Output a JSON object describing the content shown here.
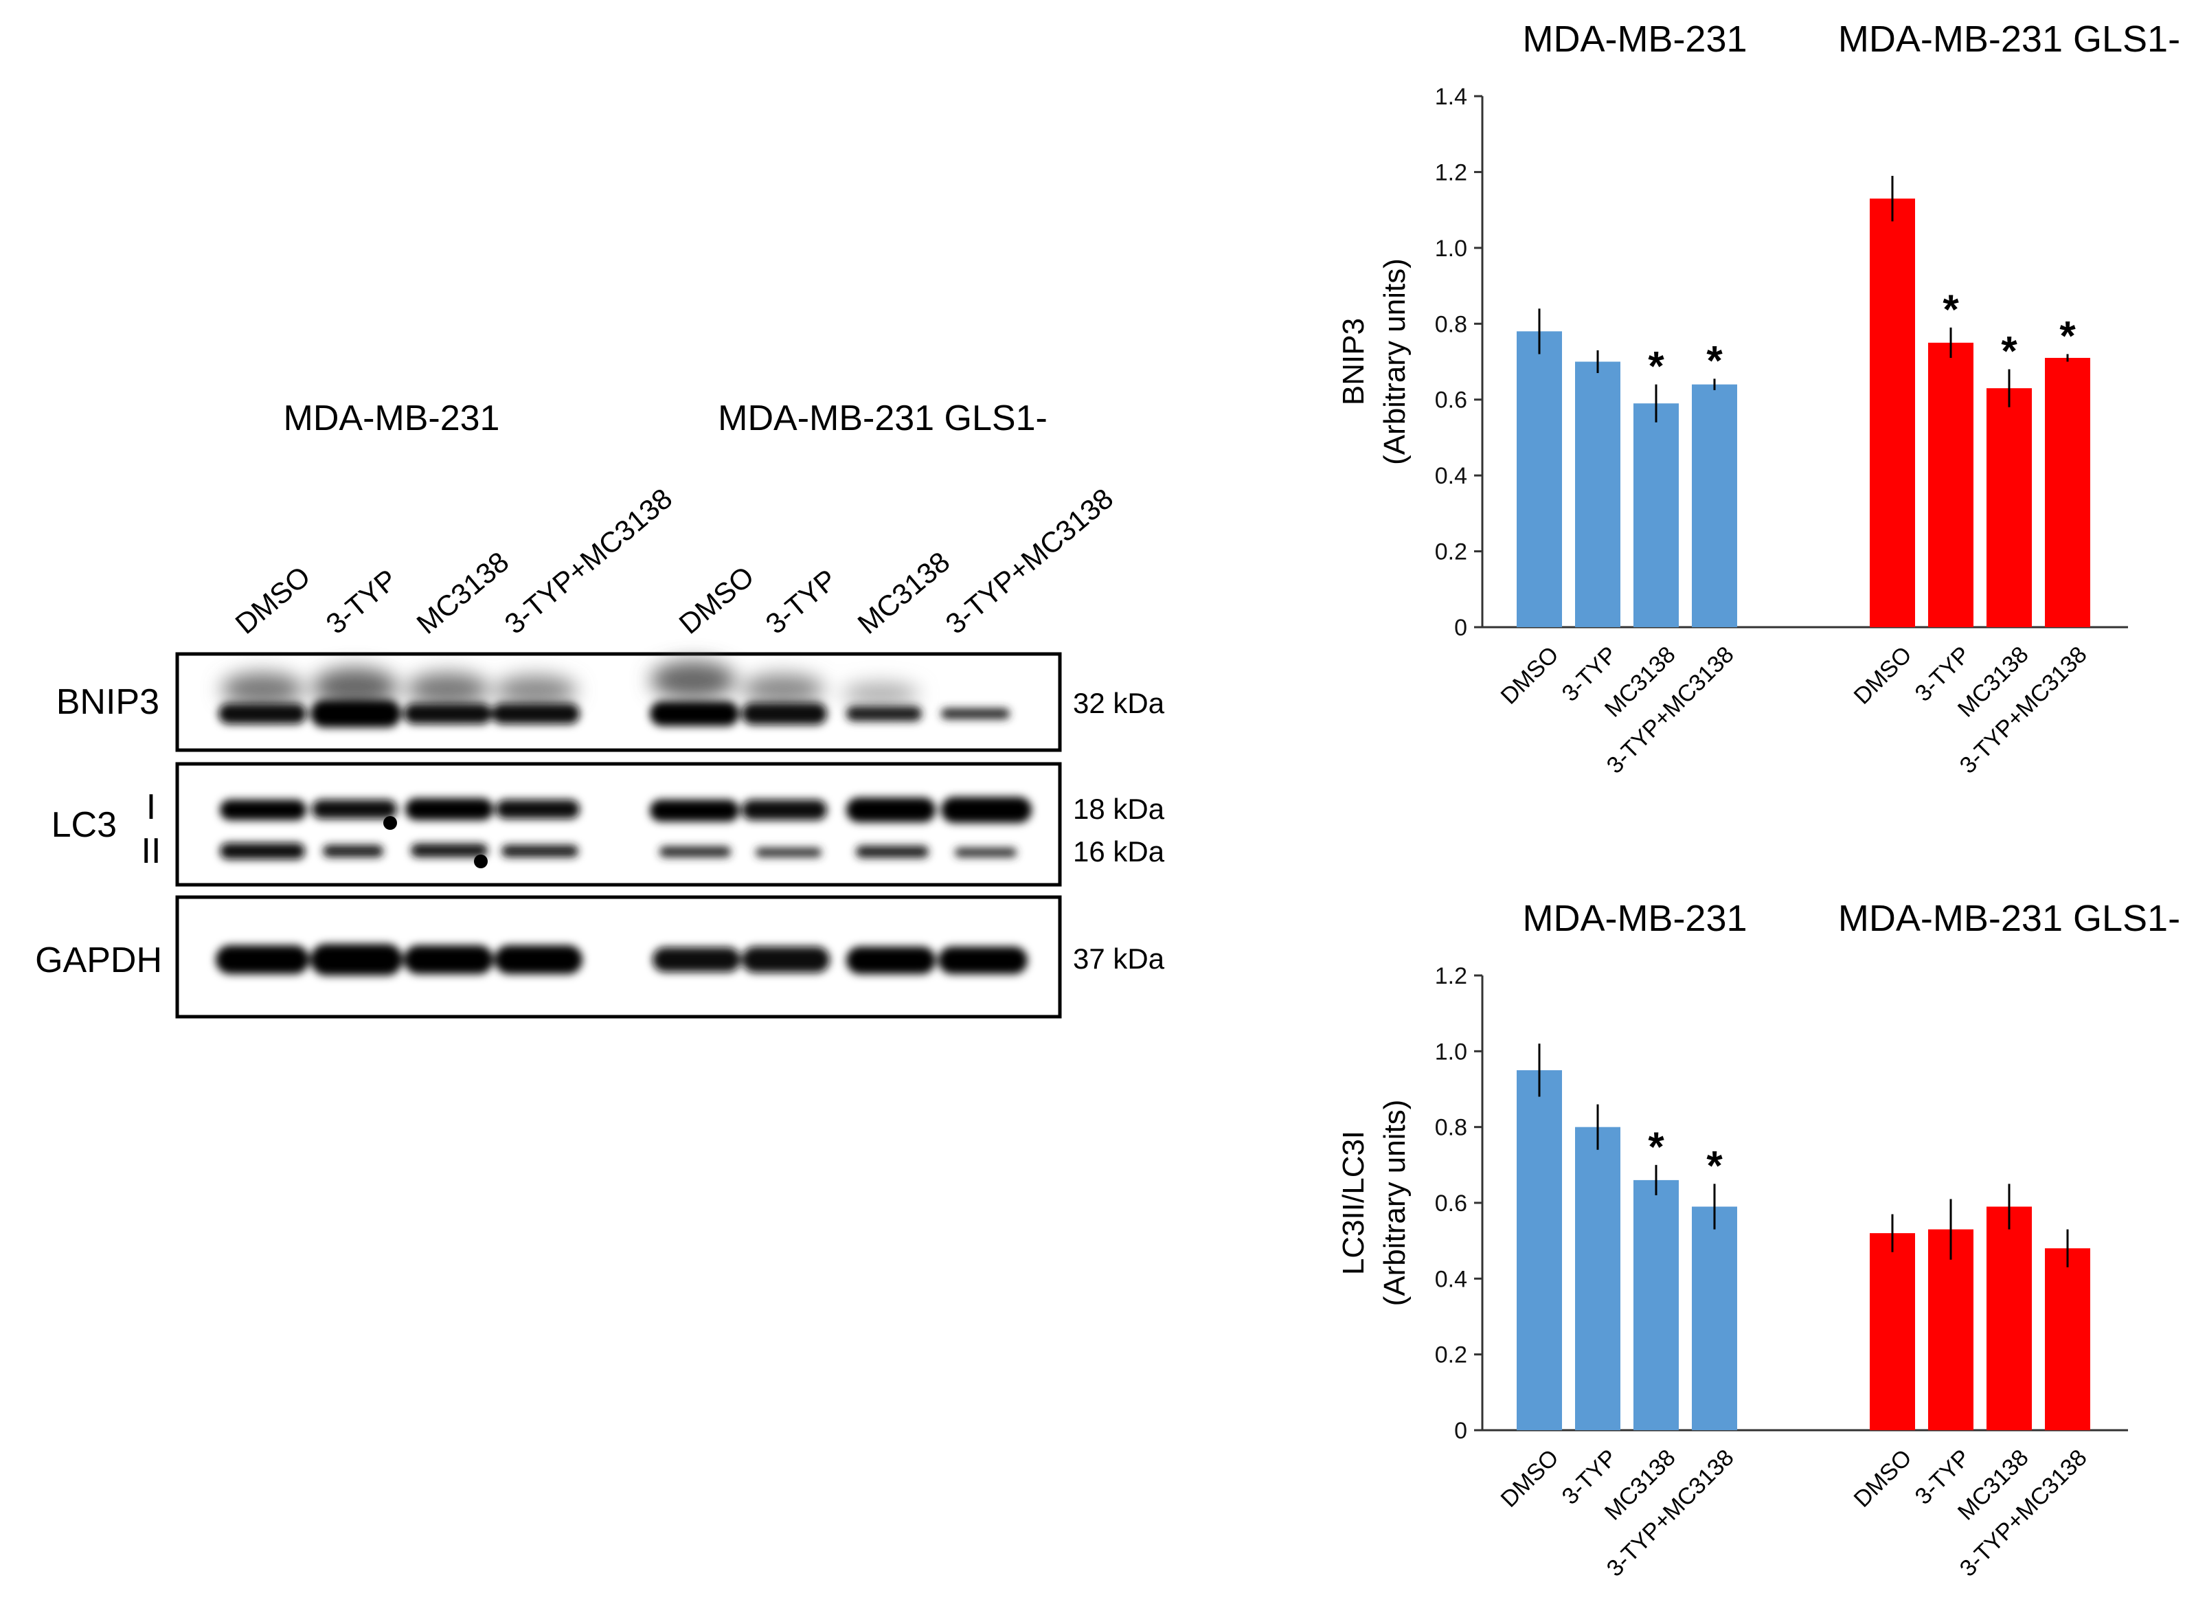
{
  "blot": {
    "groups": [
      "MDA-MB-231",
      "MDA-MB-231 GLS1-"
    ],
    "lanes": [
      "DMSO",
      "3-TYP",
      "MC3138",
      "3-TYP+MC3138",
      "DMSO",
      "3-TYP",
      "MC3138",
      "3-TYP+MC3138"
    ],
    "panels": [
      {
        "label": "BNIP3",
        "sublabels": [],
        "markers": [
          "32 kDa"
        ]
      },
      {
        "label": "LC3",
        "sublabels": [
          "I",
          "II"
        ],
        "markers": [
          "18 kDa",
          "16 kDa"
        ]
      },
      {
        "label": "GAPDH",
        "sublabels": [],
        "markers": [
          "37 kDa"
        ]
      }
    ]
  },
  "chart_data": [
    {
      "type": "bar",
      "groups": [
        "MDA-MB-231",
        "MDA-MB-231 GLS1-"
      ],
      "categories": [
        "DMSO",
        "3-TYP",
        "MC3138",
        "3-TYP+MC3138"
      ],
      "ylabel": [
        "BNIP3",
        "(Arbitrary units)"
      ],
      "ylim": [
        0,
        1.4
      ],
      "yticks": [
        "0",
        "0.2",
        "0.4",
        "0.6",
        "0.8",
        "1.0",
        "1.2",
        "1.4"
      ],
      "series": [
        {
          "values": [
            0.78,
            0.7,
            0.59,
            0.64
          ],
          "errors": [
            0.06,
            0.03,
            0.05,
            0.015
          ],
          "sig": [
            "",
            "",
            "*",
            "*"
          ],
          "color": "#5b9bd5"
        },
        {
          "values": [
            1.13,
            0.75,
            0.63,
            0.71
          ],
          "errors": [
            0.06,
            0.04,
            0.05,
            0.01
          ],
          "sig": [
            "",
            "*",
            "*",
            "*"
          ],
          "color": "#ff0000"
        }
      ]
    },
    {
      "type": "bar",
      "groups": [
        "MDA-MB-231",
        "MDA-MB-231 GLS1-"
      ],
      "categories": [
        "DMSO",
        "3-TYP",
        "MC3138",
        "3-TYP+MC3138"
      ],
      "ylabel": [
        "LC3II/LC3I",
        "(Arbitrary units)"
      ],
      "ylim": [
        0,
        1.2
      ],
      "yticks": [
        "0",
        "0.2",
        "0.4",
        "0.6",
        "0.8",
        "1.0",
        "1.2"
      ],
      "series": [
        {
          "values": [
            0.95,
            0.8,
            0.66,
            0.59
          ],
          "errors": [
            0.07,
            0.06,
            0.04,
            0.06
          ],
          "sig": [
            "",
            "",
            "*",
            "*"
          ],
          "color": "#5b9bd5"
        },
        {
          "values": [
            0.52,
            0.53,
            0.59,
            0.48
          ],
          "errors": [
            0.05,
            0.08,
            0.06,
            0.05
          ],
          "sig": [
            "",
            "",
            "",
            ""
          ],
          "color": "#ff0000"
        }
      ]
    }
  ]
}
